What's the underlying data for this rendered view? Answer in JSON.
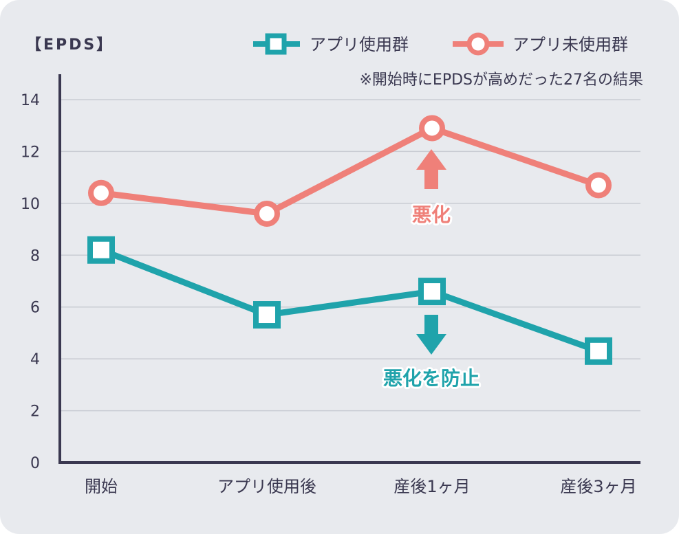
{
  "chart_data": {
    "type": "line",
    "ylabel": "【EPDS】",
    "note": "※開始時にEPDSが高めだった27名の結果",
    "categories": [
      "開始",
      "アプリ使用後",
      "産後1ヶ月",
      "産後3ヶ月"
    ],
    "ylim": [
      0,
      14
    ],
    "yticks": [
      0,
      2,
      4,
      6,
      8,
      10,
      12,
      14
    ],
    "grid": true,
    "legend_position": "top-right",
    "series": [
      {
        "name": "アプリ使用群",
        "values": [
          8.2,
          5.7,
          6.6,
          4.3
        ],
        "color": "#1fa3ab",
        "marker": "square"
      },
      {
        "name": "アプリ未使用群",
        "values": [
          10.4,
          9.6,
          12.9,
          10.7
        ],
        "color": "#ef8079",
        "marker": "circle"
      }
    ],
    "annotations": [
      {
        "text": "悪化",
        "color": "#ef8079",
        "arrow": "up",
        "category": "産後1ヶ月"
      },
      {
        "text": "悪化を防止",
        "color": "#1fa3ab",
        "arrow": "down",
        "category": "産後1ヶ月"
      }
    ]
  },
  "colors": {
    "background": "#e8eaee",
    "axis": "#3a3850",
    "grid": "#c9ccd3",
    "text": "#3a3850"
  }
}
